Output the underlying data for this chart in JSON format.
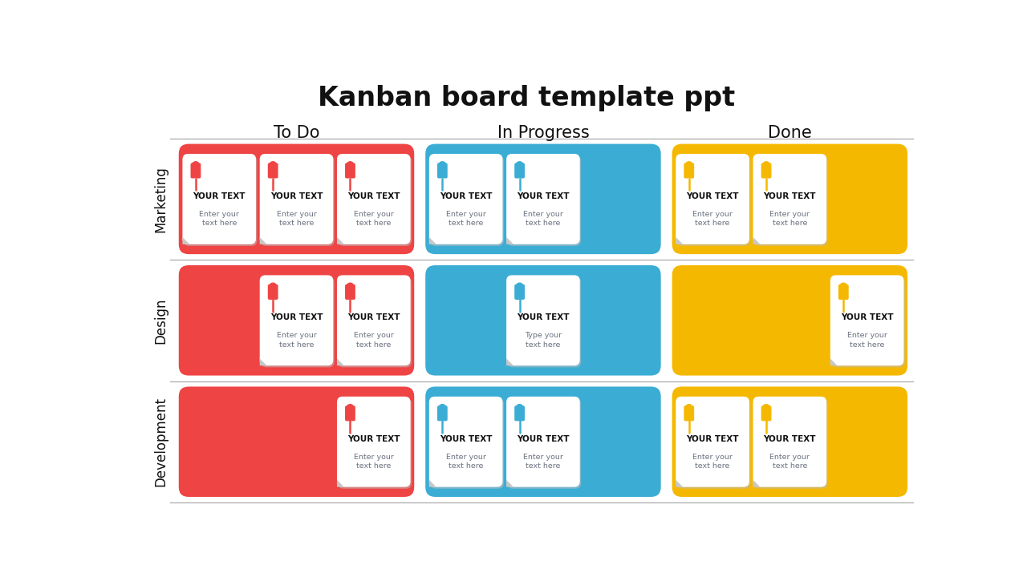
{
  "title": "Kanban board template ppt",
  "title_fontsize": 24,
  "col_headers": [
    "To Do",
    "In Progress",
    "Done"
  ],
  "row_headers": [
    "Marketing",
    "Design",
    "Development"
  ],
  "col_colors": [
    "#EF4444",
    "#3BADD4",
    "#F5B800"
  ],
  "card_title": "YOUR TEXT",
  "card_body_default": "Enter your\ntext here",
  "card_text_color": "#6B7280",
  "card_title_color": "#111111",
  "background_color": "#ffffff",
  "card_body_special": {
    "Design_In Progress_0": "Type your\ntext here"
  },
  "card_configs": [
    {
      "row": "Marketing",
      "col": "To Do",
      "n": 3,
      "align": "left"
    },
    {
      "row": "Marketing",
      "col": "In Progress",
      "n": 2,
      "align": "left"
    },
    {
      "row": "Marketing",
      "col": "Done",
      "n": 2,
      "align": "left"
    },
    {
      "row": "Design",
      "col": "To Do",
      "n": 2,
      "align": "right"
    },
    {
      "row": "Design",
      "col": "In Progress",
      "n": 1,
      "align": "center"
    },
    {
      "row": "Design",
      "col": "Done",
      "n": 1,
      "align": "right"
    },
    {
      "row": "Development",
      "col": "To Do",
      "n": 1,
      "align": "right"
    },
    {
      "row": "Development",
      "col": "In Progress",
      "n": 2,
      "align": "left"
    },
    {
      "row": "Development",
      "col": "Done",
      "n": 2,
      "align": "left"
    }
  ]
}
